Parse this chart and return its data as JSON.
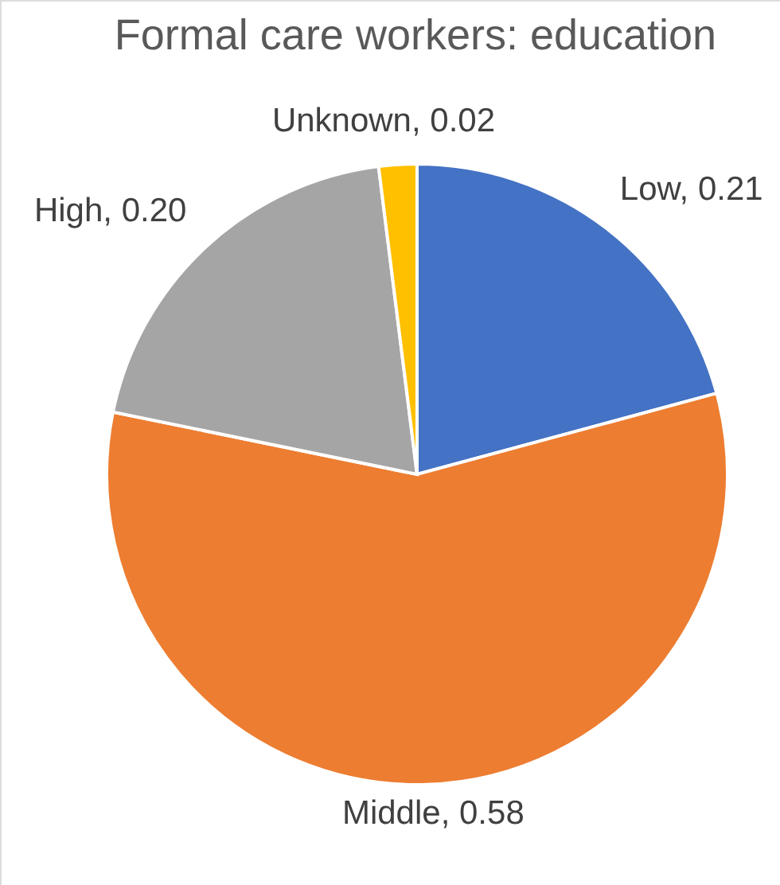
{
  "chart_data": {
    "type": "pie",
    "title": "Formal care workers: education",
    "categories": [
      "Low",
      "Middle",
      "High",
      "Unknown"
    ],
    "values": [
      0.21,
      0.58,
      0.2,
      0.02
    ],
    "value_labels": [
      "0.21",
      "0.58",
      "0.20",
      "0.02"
    ],
    "colors": [
      "#4472c4",
      "#ed7d31",
      "#a5a5a5",
      "#ffc000"
    ]
  }
}
